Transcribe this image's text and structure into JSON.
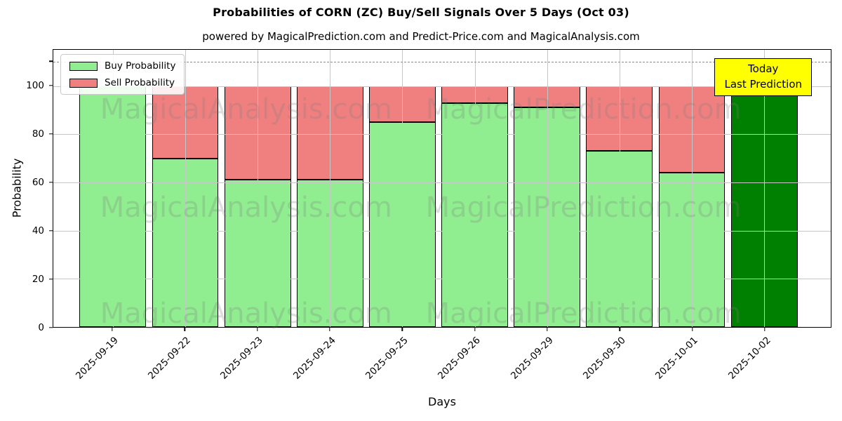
{
  "title": "Probabilities of CORN (ZC) Buy/Sell Signals Over 5 Days (Oct 03)",
  "subtitle": "powered by MagicalPrediction.com and Predict-Price.com and MagicalAnalysis.com",
  "legend": [
    {
      "label": "Buy Probability",
      "color": "#90ee90"
    },
    {
      "label": "Sell Probability",
      "color": "#f08080"
    }
  ],
  "annotation": {
    "line1": "Today",
    "line2": "Last Prediction",
    "bg_color": "#ffff00"
  },
  "watermarks": {
    "left": "MagicalAnalysis.com",
    "right": "MagicalPrediction.com"
  },
  "chart_data": {
    "type": "bar",
    "stacked": true,
    "categories": [
      "2025-09-19",
      "2025-09-22",
      "2025-09-23",
      "2025-09-24",
      "2025-09-25",
      "2025-09-26",
      "2025-09-29",
      "2025-09-30",
      "2025-10-01",
      "2025-10-02"
    ],
    "series": [
      {
        "name": "Buy Probability",
        "color": "#90ee90",
        "values": [
          100,
          70,
          61,
          61,
          85,
          93,
          91,
          73,
          64,
          100
        ]
      },
      {
        "name": "Sell Probability",
        "color": "#f08080",
        "values": [
          0,
          30,
          39,
          39,
          15,
          7,
          9,
          27,
          36,
          0
        ]
      }
    ],
    "today_bar": {
      "index": 9,
      "color": "#008000",
      "label": "Today Last Prediction"
    },
    "bar_edge_color": "#000000",
    "title": "Probabilities of CORN (ZC) Buy/Sell Signals Over 5 Days (Oct 03)",
    "xlabel": "Days",
    "ylabel": "Probability",
    "yticks": [
      0,
      20,
      40,
      60,
      80,
      100
    ],
    "ylim": [
      0,
      115
    ],
    "dashed_line_y": 110,
    "grid": true,
    "legend_position": "upper left"
  }
}
